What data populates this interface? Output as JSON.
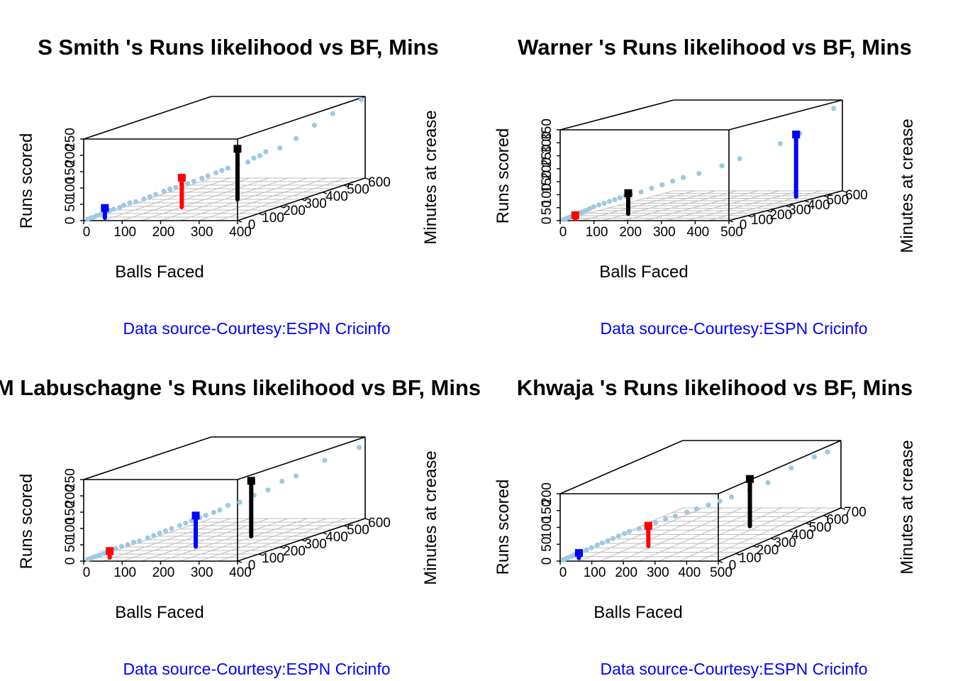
{
  "chart_data": [
    {
      "type": "scatter3d",
      "title": "S Smith 's Runs likelihood vs BF, Mins",
      "xlabel": "Balls Faced",
      "ylabel": "Minutes at crease",
      "zlabel": "Runs scored",
      "source": "Data source-Courtesy:ESPN Cricinfo",
      "xticks": [
        "0",
        "100",
        "200",
        "300",
        "400"
      ],
      "yticks": [
        "0",
        "100",
        "200",
        "300",
        "400",
        "500",
        "600"
      ],
      "zticks": [
        "0",
        "50",
        "100",
        "150",
        "200",
        "250"
      ],
      "xlim": [
        0,
        400
      ],
      "ylim": [
        0,
        600
      ],
      "zlim": [
        0,
        250
      ],
      "point_color": "#9ecae1",
      "points": [
        [
          5,
          10,
          2
        ],
        [
          10,
          15,
          5
        ],
        [
          15,
          20,
          6
        ],
        [
          20,
          25,
          10
        ],
        [
          25,
          35,
          12
        ],
        [
          30,
          40,
          15
        ],
        [
          35,
          45,
          16
        ],
        [
          40,
          50,
          20
        ],
        [
          45,
          60,
          22
        ],
        [
          55,
          70,
          25
        ],
        [
          60,
          80,
          30
        ],
        [
          70,
          90,
          35
        ],
        [
          80,
          100,
          36
        ],
        [
          90,
          120,
          40
        ],
        [
          100,
          130,
          45
        ],
        [
          110,
          140,
          50
        ],
        [
          120,
          160,
          55
        ],
        [
          130,
          170,
          60
        ],
        [
          140,
          180,
          62
        ],
        [
          150,
          190,
          68
        ],
        [
          160,
          200,
          70
        ],
        [
          170,
          210,
          75
        ],
        [
          180,
          230,
          80
        ],
        [
          190,
          240,
          85
        ],
        [
          200,
          260,
          90
        ],
        [
          210,
          270,
          95
        ],
        [
          220,
          280,
          100
        ],
        [
          235,
          300,
          105
        ],
        [
          250,
          320,
          110
        ],
        [
          260,
          330,
          120
        ],
        [
          270,
          340,
          125
        ],
        [
          280,
          350,
          135
        ],
        [
          300,
          380,
          140
        ],
        [
          320,
          420,
          160
        ],
        [
          340,
          470,
          190
        ],
        [
          360,
          520,
          215
        ],
        [
          390,
          600,
          240
        ]
      ],
      "clusters": [
        {
          "color": "#0000ff",
          "x": 33,
          "y": 40,
          "z": 30
        },
        {
          "color": "#ff0000",
          "x": 150,
          "y": 190,
          "z": 90
        },
        {
          "color": "#000000",
          "x": 234,
          "y": 300,
          "z": 155
        }
      ]
    },
    {
      "type": "scatter3d",
      "title": "Warner 's Runs likelihood vs BF, Mins",
      "xlabel": "Balls Faced",
      "ylabel": "Minutes at crease",
      "zlabel": "Runs scored",
      "source": "Data source-Courtesy:ESPN Cricinfo",
      "xticks": [
        "0",
        "100",
        "200",
        "300",
        "400",
        "500"
      ],
      "yticks": [
        "0",
        "100",
        "200",
        "300",
        "400",
        "500",
        "600"
      ],
      "zticks": [
        "0",
        "50",
        "100",
        "150",
        "200",
        "250",
        "300",
        "350"
      ],
      "xlim": [
        0,
        500
      ],
      "ylim": [
        0,
        600
      ],
      "zlim": [
        0,
        350
      ],
      "point_color": "#9ecae1",
      "points": [
        [
          5,
          8,
          2
        ],
        [
          10,
          15,
          5
        ],
        [
          15,
          20,
          8
        ],
        [
          20,
          25,
          12
        ],
        [
          25,
          30,
          15
        ],
        [
          30,
          35,
          18
        ],
        [
          35,
          40,
          22
        ],
        [
          40,
          45,
          25
        ],
        [
          45,
          50,
          28
        ],
        [
          50,
          55,
          30
        ],
        [
          55,
          60,
          35
        ],
        [
          60,
          70,
          40
        ],
        [
          70,
          80,
          45
        ],
        [
          80,
          90,
          50
        ],
        [
          90,
          100,
          55
        ],
        [
          100,
          110,
          60
        ],
        [
          110,
          120,
          65
        ],
        [
          120,
          130,
          70
        ],
        [
          130,
          140,
          75
        ],
        [
          150,
          160,
          80
        ],
        [
          170,
          180,
          90
        ],
        [
          190,
          200,
          100
        ],
        [
          210,
          220,
          110
        ],
        [
          230,
          240,
          120
        ],
        [
          260,
          270,
          130
        ],
        [
          300,
          320,
          150
        ],
        [
          330,
          360,
          170
        ],
        [
          400,
          450,
          210
        ],
        [
          430,
          500,
          240
        ],
        [
          480,
          590,
          320
        ]
      ],
      "clusters": [
        {
          "color": "#ff0000",
          "x": 28,
          "y": 30,
          "z": 15
        },
        {
          "color": "#000000",
          "x": 126,
          "y": 135,
          "z": 80
        },
        {
          "color": "#0000ff",
          "x": 430,
          "y": 480,
          "z": 240
        }
      ]
    },
    {
      "type": "scatter3d",
      "title": "M Labuschagne 's Runs likelihood vs BF, Mins",
      "xlabel": "Balls Faced",
      "ylabel": "Minutes at crease",
      "zlabel": "Runs scored",
      "source": "Data source-Courtesy:ESPN Cricinfo",
      "xticks": [
        "0",
        "100",
        "200",
        "300",
        "400"
      ],
      "yticks": [
        "0",
        "100",
        "200",
        "300",
        "400",
        "500",
        "600"
      ],
      "zticks": [
        "0",
        "50",
        "100",
        "150",
        "200",
        "250"
      ],
      "xlim": [
        0,
        400
      ],
      "ylim": [
        0,
        600
      ],
      "zlim": [
        0,
        250
      ],
      "point_color": "#9ecae1",
      "points": [
        [
          5,
          10,
          3
        ],
        [
          10,
          15,
          5
        ],
        [
          15,
          20,
          8
        ],
        [
          20,
          25,
          10
        ],
        [
          25,
          30,
          12
        ],
        [
          30,
          40,
          15
        ],
        [
          35,
          45,
          18
        ],
        [
          40,
          50,
          20
        ],
        [
          50,
          60,
          25
        ],
        [
          60,
          70,
          30
        ],
        [
          70,
          80,
          33
        ],
        [
          80,
          90,
          38
        ],
        [
          90,
          100,
          40
        ],
        [
          100,
          120,
          45
        ],
        [
          110,
          130,
          50
        ],
        [
          120,
          140,
          55
        ],
        [
          130,
          150,
          60
        ],
        [
          140,
          160,
          65
        ],
        [
          150,
          180,
          70
        ],
        [
          160,
          190,
          75
        ],
        [
          170,
          200,
          80
        ],
        [
          180,
          220,
          85
        ],
        [
          190,
          230,
          90
        ],
        [
          200,
          250,
          95
        ],
        [
          210,
          260,
          100
        ],
        [
          220,
          280,
          110
        ],
        [
          240,
          300,
          115
        ],
        [
          260,
          330,
          130
        ],
        [
          280,
          360,
          140
        ],
        [
          300,
          390,
          160
        ],
        [
          320,
          420,
          170
        ],
        [
          350,
          500,
          200
        ],
        [
          390,
          590,
          220
        ]
      ],
      "clusters": [
        {
          "color": "#ff0000",
          "x": 40,
          "y": 50,
          "z": 20
        },
        {
          "color": "#0000ff",
          "x": 178,
          "y": 205,
          "z": 95
        },
        {
          "color": "#000000",
          "x": 242,
          "y": 350,
          "z": 170
        }
      ]
    },
    {
      "type": "scatter3d",
      "title": "Khwaja 's Runs likelihood vs BF, Mins",
      "xlabel": "Balls Faced",
      "ylabel": "Minutes at crease",
      "zlabel": "Runs scored",
      "source": "Data source-Courtesy:ESPN Cricinfo",
      "xticks": [
        "0",
        "100",
        "200",
        "300",
        "400",
        "500"
      ],
      "yticks": [
        "0",
        "100",
        "200",
        "300",
        "400",
        "500",
        "600",
        "700"
      ],
      "zticks": [
        "0",
        "50",
        "100",
        "150",
        "200"
      ],
      "xlim": [
        0,
        500
      ],
      "ylim": [
        0,
        700
      ],
      "zlim": [
        0,
        200
      ],
      "point_color": "#9ecae1",
      "points": [
        [
          5,
          8,
          2
        ],
        [
          10,
          12,
          4
        ],
        [
          15,
          18,
          6
        ],
        [
          20,
          25,
          8
        ],
        [
          25,
          30,
          10
        ],
        [
          30,
          35,
          12
        ],
        [
          35,
          40,
          14
        ],
        [
          40,
          50,
          17
        ],
        [
          50,
          60,
          20
        ],
        [
          60,
          70,
          24
        ],
        [
          70,
          85,
          28
        ],
        [
          80,
          95,
          32
        ],
        [
          90,
          110,
          36
        ],
        [
          100,
          120,
          40
        ],
        [
          110,
          135,
          44
        ],
        [
          120,
          150,
          48
        ],
        [
          130,
          160,
          52
        ],
        [
          150,
          180,
          56
        ],
        [
          160,
          200,
          60
        ],
        [
          180,
          220,
          65
        ],
        [
          200,
          240,
          70
        ],
        [
          220,
          260,
          75
        ],
        [
          240,
          290,
          80
        ],
        [
          260,
          310,
          85
        ],
        [
          280,
          340,
          90
        ],
        [
          300,
          370,
          95
        ],
        [
          320,
          400,
          100
        ],
        [
          350,
          450,
          110
        ],
        [
          380,
          500,
          120
        ],
        [
          420,
          560,
          150
        ],
        [
          460,
          620,
          170
        ],
        [
          480,
          660,
          175
        ]
      ],
      "clusters": [
        {
          "color": "#0000ff",
          "x": 37,
          "y": 40,
          "z": 15
        },
        {
          "color": "#ff0000",
          "x": 168,
          "y": 200,
          "z": 60
        },
        {
          "color": "#000000",
          "x": 345,
          "y": 460,
          "z": 140
        }
      ]
    }
  ]
}
